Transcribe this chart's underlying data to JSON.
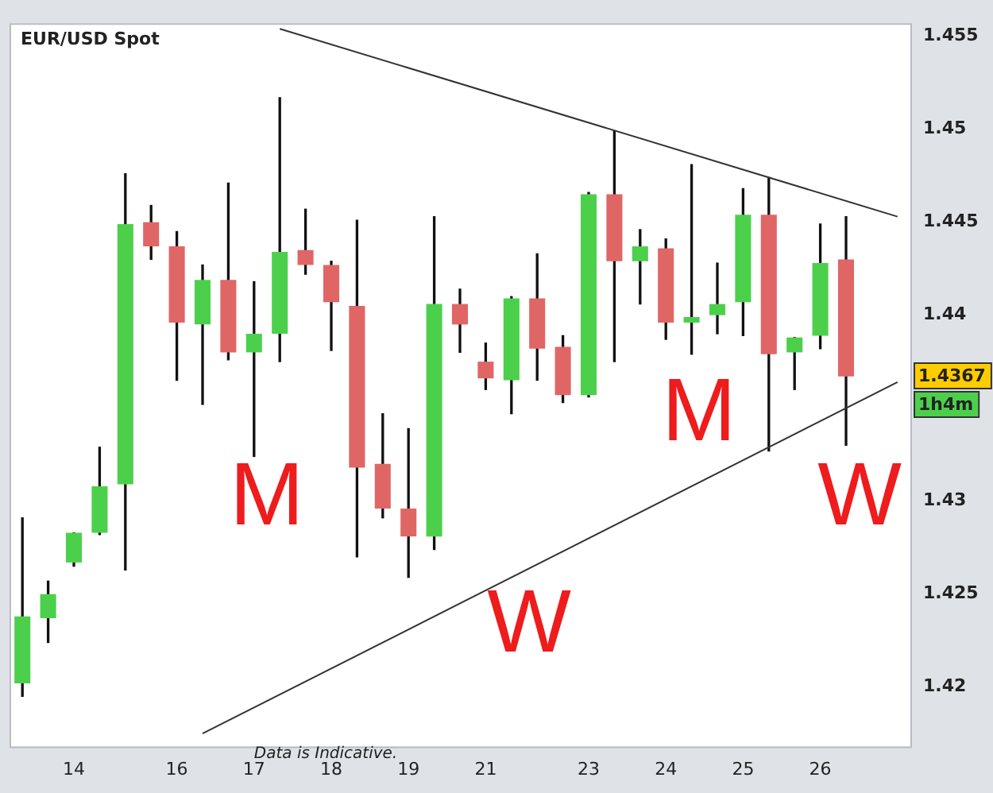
{
  "chart_data": {
    "type": "candlestick",
    "title": "EUR/USD Spot",
    "categories": [
      null,
      null,
      "14",
      null,
      null,
      null,
      "16",
      null,
      null,
      "17",
      null,
      null,
      "18",
      null,
      null,
      "19",
      null,
      null,
      "21",
      null,
      null,
      null,
      "23",
      null,
      null,
      "24",
      null,
      null,
      "25",
      null,
      null,
      "26",
      null,
      null,
      null
    ],
    "ohlc": [
      [
        1.4202,
        1.4291,
        1.4195,
        1.4238
      ],
      [
        1.4237,
        1.4257,
        1.4224,
        1.425
      ],
      [
        1.4267,
        1.4283,
        1.4265,
        1.4283
      ],
      [
        1.4283,
        1.4329,
        1.4282,
        1.4308
      ],
      [
        1.4309,
        1.4476,
        1.4263,
        1.4449
      ],
      [
        1.445,
        1.4459,
        1.443,
        1.4437
      ],
      [
        1.4437,
        1.4445,
        1.4365,
        1.4396
      ],
      [
        1.4395,
        1.4427,
        1.4352,
        1.4419
      ],
      [
        1.4419,
        1.4471,
        1.4376,
        1.438
      ],
      [
        1.438,
        1.4418,
        1.4324,
        1.439
      ],
      [
        1.439,
        1.4517,
        1.4375,
        1.4434
      ],
      [
        1.4435,
        1.4457,
        1.4422,
        1.4427
      ],
      [
        1.4427,
        1.4429,
        1.4381,
        1.4407
      ],
      [
        1.4405,
        1.4451,
        1.427,
        1.4318
      ],
      [
        1.432,
        1.4347,
        1.4291,
        1.4296
      ],
      [
        1.4296,
        1.4339,
        1.4259,
        1.4281
      ],
      [
        1.4281,
        1.4453,
        1.4274,
        1.4406
      ],
      [
        1.4406,
        1.4414,
        1.438,
        1.4395
      ],
      [
        1.4375,
        1.4385,
        1.436,
        1.4366
      ],
      [
        1.4365,
        1.441,
        1.4347,
        1.4409
      ],
      [
        1.4409,
        1.4433,
        1.4365,
        1.4382
      ],
      [
        1.4383,
        1.4389,
        1.4353,
        1.4357
      ],
      [
        1.4357,
        1.4466,
        1.4356,
        1.4465
      ],
      [
        1.4465,
        1.4499,
        1.4375,
        1.4429
      ],
      [
        1.4429,
        1.4446,
        1.4406,
        1.4437
      ],
      [
        1.4436,
        1.4441,
        1.4387,
        1.4396
      ],
      [
        1.4396,
        1.4481,
        1.4379,
        1.4399
      ],
      [
        1.44,
        1.4428,
        1.439,
        1.4406
      ],
      [
        1.4407,
        1.4468,
        1.4389,
        1.4454
      ],
      [
        1.4454,
        1.4474,
        1.4327,
        1.4379
      ],
      [
        1.438,
        1.4388,
        1.436,
        1.4388
      ],
      [
        1.4389,
        1.4449,
        1.4382,
        1.4428
      ],
      [
        1.443,
        1.4453,
        1.433,
        1.4367
      ],
      null,
      null
    ],
    "colors": [
      "#4cd04c",
      "#4cd04c",
      "#4cd04c",
      "#4cd04c",
      "#4cd04c",
      "#e06666",
      "#e06666",
      "#4cd04c",
      "#e06666",
      "#4cd04c",
      "#4cd04c",
      "#e06666",
      "#e06666",
      "#e06666",
      "#e06666",
      "#e06666",
      "#4cd04c",
      "#e06666",
      "#e06666",
      "#4cd04c",
      "#e06666",
      "#e06666",
      "#4cd04c",
      "#e06666",
      "#4cd04c",
      "#e06666",
      "#4cd04c",
      "#4cd04c",
      "#4cd04c",
      "#e06666",
      "#4cd04c",
      "#4cd04c",
      "#e06666",
      null,
      null
    ],
    "series": [
      {
        "type": "line",
        "color": "#333333",
        "values": [
          null,
          null,
          null,
          null,
          null,
          null,
          null,
          null,
          null,
          null,
          1.4554,
          null,
          null,
          null,
          null,
          null,
          null,
          null,
          null,
          null,
          null,
          null,
          null,
          null,
          null,
          null,
          null,
          null,
          null,
          null,
          null,
          null,
          null,
          null,
          1.4453
        ]
      },
      {
        "type": "line",
        "color": "#333333",
        "values": [
          null,
          null,
          null,
          null,
          null,
          null,
          null,
          1.4175,
          null,
          null,
          null,
          null,
          null,
          null,
          null,
          null,
          null,
          null,
          null,
          null,
          null,
          null,
          null,
          null,
          null,
          null,
          null,
          null,
          null,
          null,
          null,
          null,
          null,
          null,
          1.4364
        ]
      }
    ],
    "ylim": [
      1.4168,
      1.4557
    ],
    "yticks": [
      1.42,
      1.425,
      1.43,
      1.44,
      1.445,
      1.45,
      1.455
    ],
    "grid": false,
    "legend": false,
    "annotations": [
      "M",
      "W",
      "M",
      "W",
      "Data is Indicative.",
      "1.4367",
      "1h4m"
    ]
  }
}
